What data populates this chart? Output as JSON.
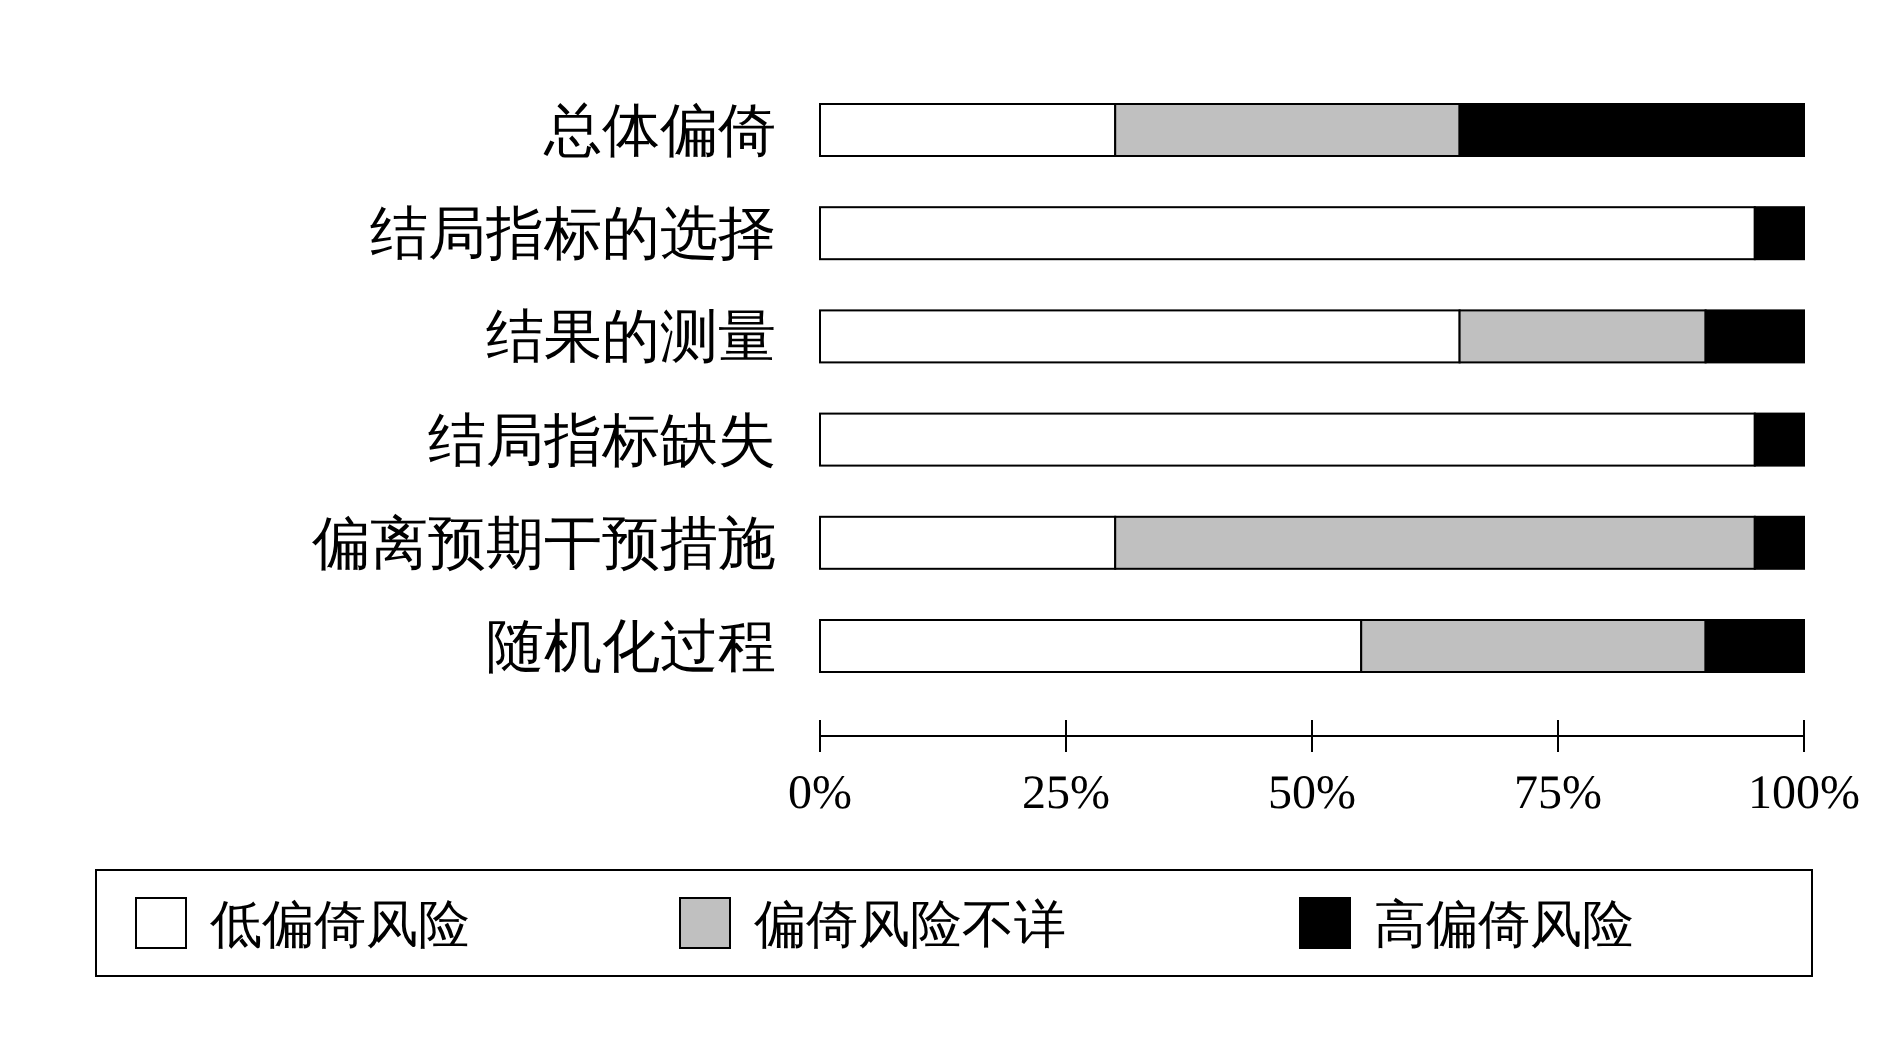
{
  "chart_data": {
    "type": "bar",
    "orientation": "horizontal",
    "stacked": true,
    "categories": [
      "总体偏倚",
      "结局指标的选择",
      "结果的测量",
      "结局指标缺失",
      "偏离预期干预措施",
      "随机化过程"
    ],
    "series": [
      {
        "name": "低偏倚风险",
        "color": "#ffffff",
        "values": [
          30,
          95,
          65,
          95,
          30,
          55
        ]
      },
      {
        "name": "偏倚风险不详",
        "color": "#c0c0c0",
        "values": [
          35,
          0,
          25,
          0,
          65,
          35
        ]
      },
      {
        "name": "高偏倚风险",
        "color": "#000000",
        "values": [
          35,
          5,
          10,
          5,
          5,
          10
        ]
      }
    ],
    "xlim": [
      0,
      100
    ],
    "xticks": [
      {
        "value": 0,
        "label": "0%"
      },
      {
        "value": 25,
        "label": "25%"
      },
      {
        "value": 50,
        "label": "50%"
      },
      {
        "value": 75,
        "label": "75%"
      },
      {
        "value": 100,
        "label": "100%"
      }
    ],
    "legend": "bottom"
  }
}
